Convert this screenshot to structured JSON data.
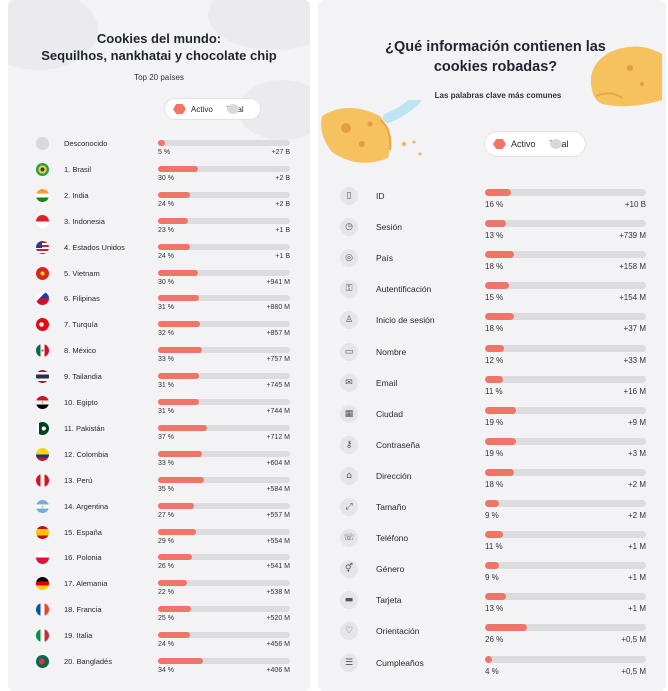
{
  "left_panel": {
    "title_line1": "Cookies del mundo:",
    "title_line2": "Sequilhos, nankhatai y chocolate chip",
    "subtitle": "Top 20 países",
    "legend": {
      "active": "Activo",
      "total": "Total"
    }
  },
  "right_panel": {
    "title_line1": "¿Qué información contienen las",
    "title_line2": "cookies robadas?",
    "subtitle": "Las palabras clave más comunes",
    "legend": {
      "active": "Activo",
      "total": "Total"
    }
  },
  "colors": {
    "active": "#f07468",
    "total": "#dcdcdf",
    "cookie": "#f6c15f"
  },
  "chart_data": [
    {
      "type": "bar",
      "title": "Cookies del mundo: Sequilhos, nankhatai y chocolate chip",
      "subtitle": "Top 20 países",
      "series": [
        {
          "name": "Activo"
        },
        {
          "name": "Total"
        }
      ],
      "categories": [
        {
          "label": "Desconocido",
          "flag": "unknown-flag-icon",
          "pct_label": "5 %",
          "active_pct": 5,
          "total_label": "+27 B"
        },
        {
          "label": "1. Brasil",
          "flag": "brazil-flag-icon",
          "pct_label": "30 %",
          "active_pct": 30,
          "total_label": "+2 B"
        },
        {
          "label": "2. India",
          "flag": "india-flag-icon",
          "pct_label": "24 %",
          "active_pct": 24,
          "total_label": "+2 B"
        },
        {
          "label": "3. Indonesia",
          "flag": "indonesia-flag-icon",
          "pct_label": "23 %",
          "active_pct": 23,
          "total_label": "+1 B"
        },
        {
          "label": "4. Estados Unidos",
          "flag": "usa-flag-icon",
          "pct_label": "24 %",
          "active_pct": 24,
          "total_label": "+1 B"
        },
        {
          "label": "5. Vietnam",
          "flag": "vietnam-flag-icon",
          "pct_label": "30 %",
          "active_pct": 30,
          "total_label": "+941 M"
        },
        {
          "label": "6. Filipinas",
          "flag": "philippines-flag-icon",
          "pct_label": "31 %",
          "active_pct": 31,
          "total_label": "+880 M"
        },
        {
          "label": "7. Turquía",
          "flag": "turkey-flag-icon",
          "pct_label": "32 %",
          "active_pct": 32,
          "total_label": "+857 M"
        },
        {
          "label": "8. México",
          "flag": "mexico-flag-icon",
          "pct_label": "33 %",
          "active_pct": 33,
          "total_label": "+757 M"
        },
        {
          "label": "9. Tailandia",
          "flag": "thailand-flag-icon",
          "pct_label": "31 %",
          "active_pct": 31,
          "total_label": "+745 M"
        },
        {
          "label": "10. Egipto",
          "flag": "egypt-flag-icon",
          "pct_label": "31 %",
          "active_pct": 31,
          "total_label": "+744 M"
        },
        {
          "label": "11. Pakistán",
          "flag": "pakistan-flag-icon",
          "pct_label": "37 %",
          "active_pct": 37,
          "total_label": "+712 M"
        },
        {
          "label": "12. Colombia",
          "flag": "colombia-flag-icon",
          "pct_label": "33 %",
          "active_pct": 33,
          "total_label": "+604 M"
        },
        {
          "label": "13. Perú",
          "flag": "peru-flag-icon",
          "pct_label": "35 %",
          "active_pct": 35,
          "total_label": "+584 M"
        },
        {
          "label": "14. Argentina",
          "flag": "argentina-flag-icon",
          "pct_label": "27 %",
          "active_pct": 27,
          "total_label": "+557 M"
        },
        {
          "label": "15. España",
          "flag": "spain-flag-icon",
          "pct_label": "29 %",
          "active_pct": 29,
          "total_label": "+554 M"
        },
        {
          "label": "16. Polonia",
          "flag": "poland-flag-icon",
          "pct_label": "26 %",
          "active_pct": 26,
          "total_label": "+541 M"
        },
        {
          "label": "17. Alemania",
          "flag": "germany-flag-icon",
          "pct_label": "22 %",
          "active_pct": 22,
          "total_label": "+538 M"
        },
        {
          "label": "18. Francia",
          "flag": "france-flag-icon",
          "pct_label": "25 %",
          "active_pct": 25,
          "total_label": "+520 M"
        },
        {
          "label": "19. Italia",
          "flag": "italy-flag-icon",
          "pct_label": "24 %",
          "active_pct": 24,
          "total_label": "+456 M"
        },
        {
          "label": "20. Bangladés",
          "flag": "bangladesh-flag-icon",
          "pct_label": "34 %",
          "active_pct": 34,
          "total_label": "+406 M"
        }
      ]
    },
    {
      "type": "bar",
      "title": "¿Qué información contienen las cookies robadas?",
      "subtitle": "Las palabras clave más comunes",
      "series": [
        {
          "name": "Activo"
        },
        {
          "name": "Total"
        }
      ],
      "categories": [
        {
          "label": "ID",
          "icon": "id-card-icon",
          "pct_label": "16 %",
          "active_pct": 16,
          "total_label": "+10 B"
        },
        {
          "label": "Sesión",
          "icon": "clock-icon",
          "pct_label": "13 %",
          "active_pct": 13,
          "total_label": "+739 M"
        },
        {
          "label": "País",
          "icon": "globe-icon",
          "pct_label": "18 %",
          "active_pct": 18,
          "total_label": "+158 M"
        },
        {
          "label": "Autentificación",
          "icon": "key-icon",
          "pct_label": "15 %",
          "active_pct": 15,
          "total_label": "+154 M"
        },
        {
          "label": "Inicio de sesión",
          "icon": "user-icon",
          "pct_label": "18 %",
          "active_pct": 18,
          "total_label": "+37 M"
        },
        {
          "label": "Nombre",
          "icon": "name-card-icon",
          "pct_label": "12 %",
          "active_pct": 12,
          "total_label": "+33 M"
        },
        {
          "label": "Email",
          "icon": "mail-icon",
          "pct_label": "11 %",
          "active_pct": 11,
          "total_label": "+16 M"
        },
        {
          "label": "Ciudad",
          "icon": "city-icon",
          "pct_label": "19 %",
          "active_pct": 19,
          "total_label": "+9 M"
        },
        {
          "label": "Contraseña",
          "icon": "password-key-icon",
          "pct_label": "19 %",
          "active_pct": 19,
          "total_label": "+3 M"
        },
        {
          "label": "Dirección",
          "icon": "home-icon",
          "pct_label": "18 %",
          "active_pct": 18,
          "total_label": "+2 M"
        },
        {
          "label": "Tamaño",
          "icon": "resize-icon",
          "pct_label": "9 %",
          "active_pct": 9,
          "total_label": "+2 M"
        },
        {
          "label": "Teléfono",
          "icon": "phone-icon",
          "pct_label": "11 %",
          "active_pct": 11,
          "total_label": "+1 M"
        },
        {
          "label": "Género",
          "icon": "gender-icon",
          "pct_label": "9 %",
          "active_pct": 9,
          "total_label": "+1 M"
        },
        {
          "label": "Tarjeta",
          "icon": "credit-card-icon",
          "pct_label": "13 %",
          "active_pct": 13,
          "total_label": "+1 M"
        },
        {
          "label": "Orientación",
          "icon": "heart-icon",
          "pct_label": "26 %",
          "active_pct": 26,
          "total_label": "+0,5 M"
        },
        {
          "label": "Cumpleaños",
          "icon": "cake-icon",
          "pct_label": "4 %",
          "active_pct": 4,
          "total_label": "+0,5 M"
        }
      ]
    }
  ]
}
